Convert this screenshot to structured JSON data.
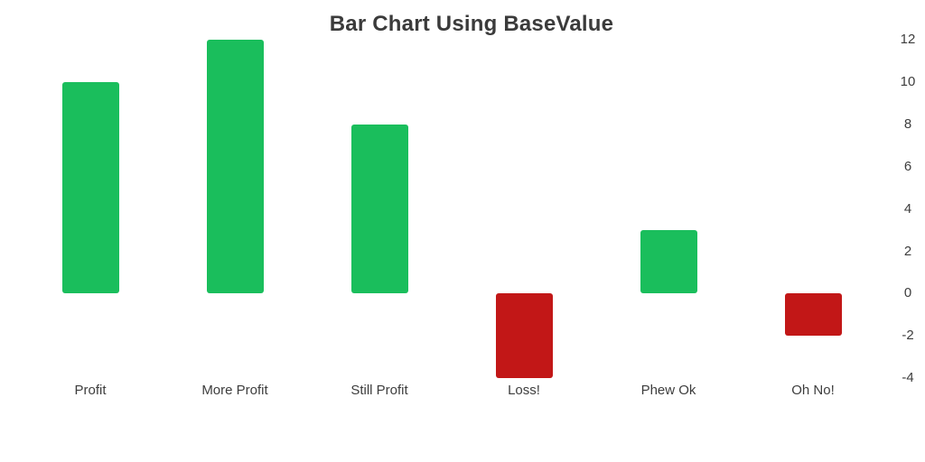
{
  "chart_data": {
    "type": "bar",
    "title": "Bar Chart Using BaseValue",
    "categories": [
      "Profit",
      "More Profit",
      "Still Profit",
      "Loss!",
      "Phew Ok",
      "Oh No!"
    ],
    "values": [
      10,
      12,
      8,
      -4,
      3,
      -2
    ],
    "base_value": 0,
    "ylim": [
      -4,
      12
    ],
    "ytick_step": 2,
    "yticks": [
      12,
      10,
      8,
      6,
      4,
      2,
      0,
      -2,
      -4
    ],
    "y_axis_side": "right",
    "grid": false,
    "legend": "none",
    "colors": {
      "positive_bar": "#1abe5c",
      "negative_bar": "#c21717",
      "title_text": "#3b3b3b",
      "axis_text": "#3d3d3d",
      "background": "#ffffff"
    }
  }
}
